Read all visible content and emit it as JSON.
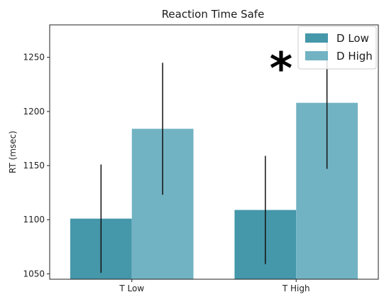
{
  "chart_data": {
    "type": "bar",
    "title": "Reaction Time Safe",
    "xlabel": "",
    "ylabel": "RT (msec)",
    "categories": [
      "T Low",
      "T High"
    ],
    "ylim": [
      1045,
      1280
    ],
    "yticks": [
      1050,
      1100,
      1150,
      1200,
      1250
    ],
    "series": [
      {
        "name": "D Low",
        "color": "#4597aa",
        "values": [
          1101,
          1109
        ],
        "errors": [
          50,
          50
        ]
      },
      {
        "name": "D High",
        "color": "#72b3c3",
        "values": [
          1184,
          1208
        ],
        "errors": [
          61,
          61
        ]
      }
    ],
    "annotation": "*",
    "grid": false,
    "legend_position": "top-right"
  }
}
